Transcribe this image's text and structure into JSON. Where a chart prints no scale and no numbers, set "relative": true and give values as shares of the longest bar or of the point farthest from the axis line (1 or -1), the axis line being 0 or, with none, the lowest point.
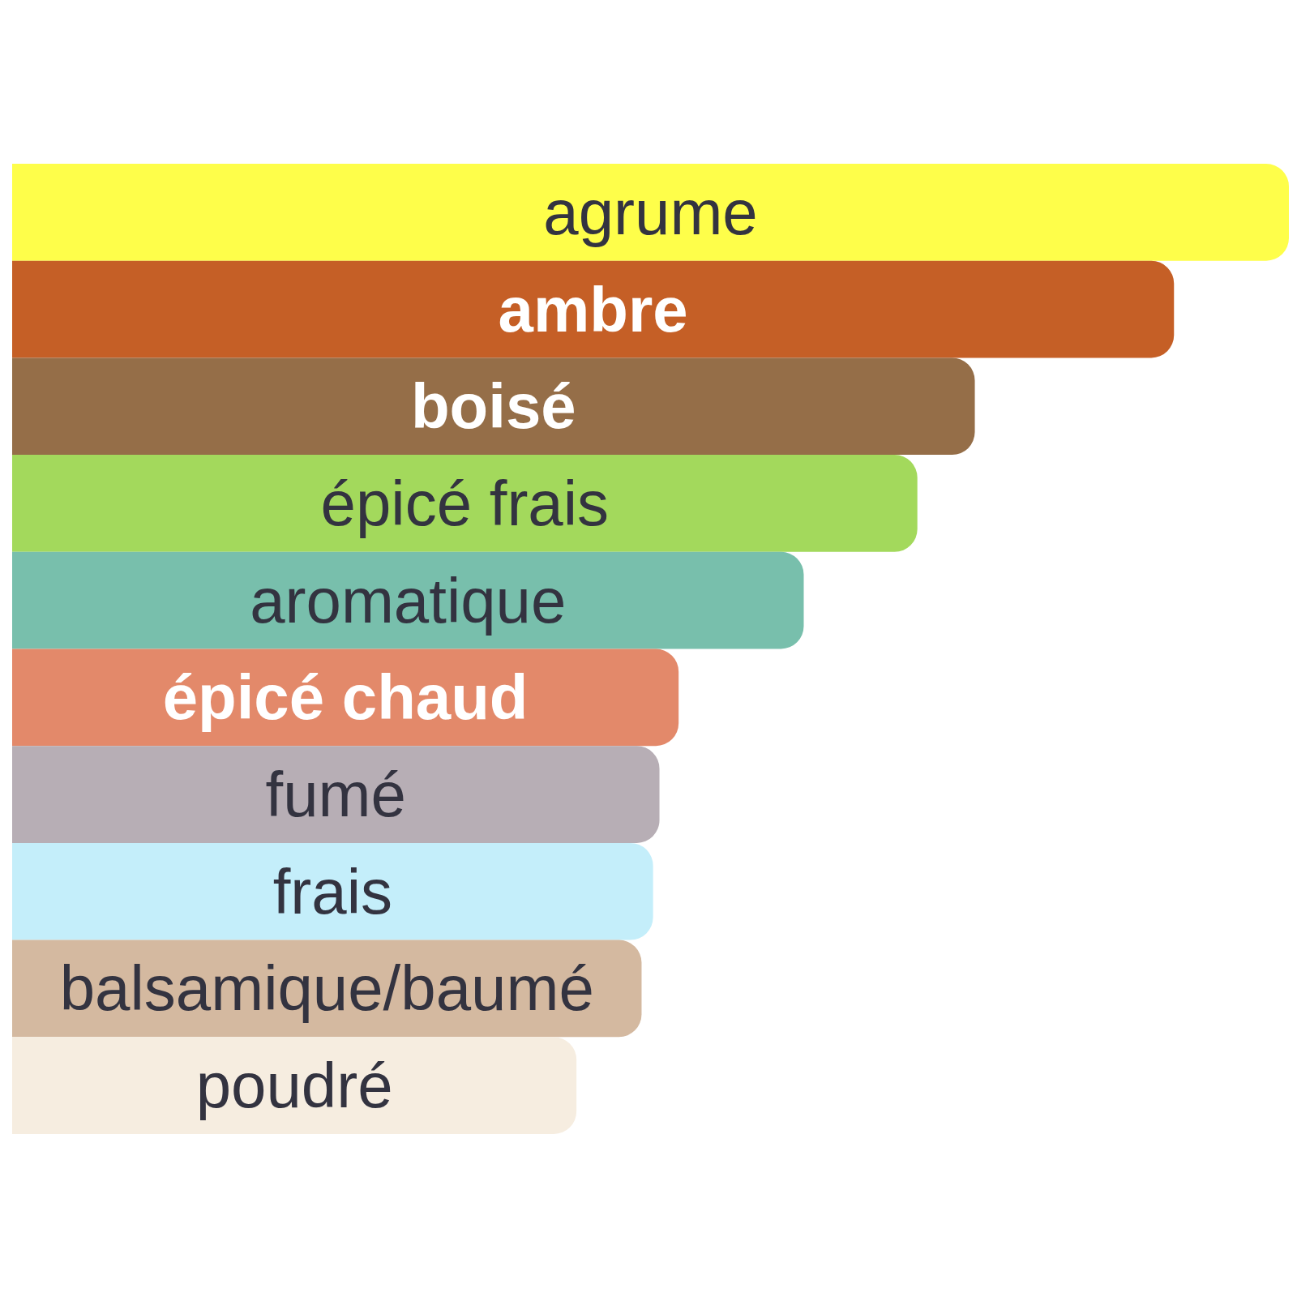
{
  "chart_data": {
    "type": "bar",
    "orientation": "horizontal",
    "relative": true,
    "categories": [
      "agrume",
      "ambre",
      "boisé",
      "épicé frais",
      "aromatique",
      "épicé chaud",
      "fumé",
      "frais",
      "balsamique/baumé",
      "poudré"
    ],
    "values": [
      1,
      0.91,
      0.754,
      0.709,
      0.62,
      0.522,
      0.507,
      0.502,
      0.493,
      0.442
    ],
    "colors": [
      "#fefe4a",
      "#c55f26",
      "#956e48",
      "#a3d95c",
      "#78bfac",
      "#e3896a",
      "#b7aeb5",
      "#c4eefa",
      "#d4b9a0",
      "#f6ede0"
    ]
  }
}
